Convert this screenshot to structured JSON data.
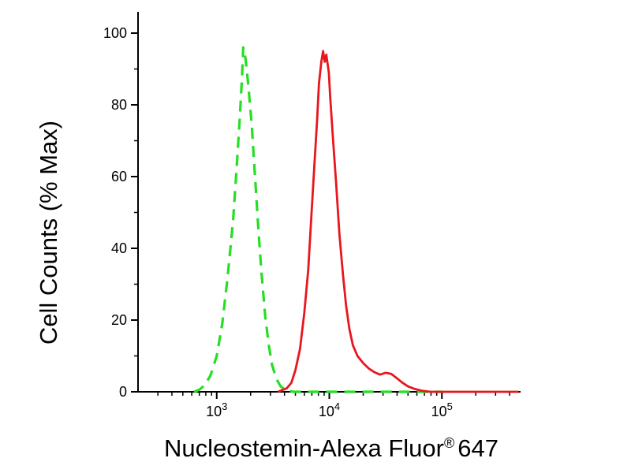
{
  "figure": {
    "background": "#ffffff",
    "axis_color": "#000000"
  },
  "chart_data": {
    "type": "line",
    "title": "",
    "xlabel": "Nucleostemin-Alexa Fluor® 647",
    "xlabel_parts": {
      "main": "Nucleostemin-Alexa Fluor",
      "sup": "®",
      "tail": "647"
    },
    "ylabel": "Cell Counts (% Max)",
    "x_scale": "log",
    "xlim": [
      200,
      500000
    ],
    "ylim": [
      0,
      100
    ],
    "yticks": [
      0,
      20,
      40,
      60,
      80,
      100
    ],
    "y_minor_ticks": [
      10,
      30,
      50,
      70,
      90
    ],
    "xticks": [
      {
        "value": 1000,
        "label_base": "10",
        "label_exp": "3"
      },
      {
        "value": 10000,
        "label_base": "10",
        "label_exp": "4"
      },
      {
        "value": 100000,
        "label_base": "10",
        "label_exp": "5"
      }
    ],
    "grid": false,
    "legend": "none",
    "series": [
      {
        "name": "control-dashed-green",
        "color": "#24df24",
        "line_style": "dashed",
        "points": [
          [
            630,
            0
          ],
          [
            700,
            0.6
          ],
          [
            780,
            1.8
          ],
          [
            880,
            4.5
          ],
          [
            1000,
            10
          ],
          [
            1120,
            19
          ],
          [
            1250,
            32
          ],
          [
            1400,
            48
          ],
          [
            1500,
            62
          ],
          [
            1600,
            76
          ],
          [
            1680,
            88
          ],
          [
            1720,
            96
          ],
          [
            1800,
            93
          ],
          [
            1900,
            86
          ],
          [
            2050,
            74
          ],
          [
            2200,
            59
          ],
          [
            2350,
            45
          ],
          [
            2500,
            33
          ],
          [
            2700,
            21
          ],
          [
            2900,
            13
          ],
          [
            3100,
            7.5
          ],
          [
            3400,
            3.5
          ],
          [
            3700,
            1.5
          ],
          [
            4100,
            0.5
          ],
          [
            4800,
            0
          ],
          [
            8000,
            0
          ],
          [
            15000,
            0
          ],
          [
            30000,
            0
          ],
          [
            60000,
            0
          ],
          [
            100000,
            0
          ]
        ]
      },
      {
        "name": "nucleostemin-solid-red",
        "color": "#e8161d",
        "line_style": "solid",
        "points": [
          [
            3500,
            0
          ],
          [
            4200,
            1
          ],
          [
            4600,
            2.5
          ],
          [
            5000,
            6
          ],
          [
            5500,
            12
          ],
          [
            6000,
            22
          ],
          [
            6500,
            34
          ],
          [
            6900,
            48
          ],
          [
            7400,
            64
          ],
          [
            7800,
            76
          ],
          [
            8100,
            86
          ],
          [
            8500,
            92
          ],
          [
            8800,
            95
          ],
          [
            9100,
            92
          ],
          [
            9400,
            94
          ],
          [
            9900,
            89
          ],
          [
            10200,
            82
          ],
          [
            10700,
            72
          ],
          [
            11500,
            58
          ],
          [
            12300,
            44
          ],
          [
            13200,
            33
          ],
          [
            14100,
            24
          ],
          [
            15100,
            17.5
          ],
          [
            16200,
            13
          ],
          [
            17800,
            10
          ],
          [
            20000,
            8
          ],
          [
            22400,
            6.5
          ],
          [
            25100,
            5.5
          ],
          [
            28200,
            4.8
          ],
          [
            31600,
            5.3
          ],
          [
            35500,
            5.0
          ],
          [
            39800,
            3.8
          ],
          [
            44700,
            2.5
          ],
          [
            50100,
            1.5
          ],
          [
            57500,
            0.8
          ],
          [
            66100,
            0.3
          ],
          [
            79400,
            0
          ],
          [
            100000,
            0
          ],
          [
            200000,
            0
          ],
          [
            480000,
            0
          ]
        ]
      }
    ]
  }
}
